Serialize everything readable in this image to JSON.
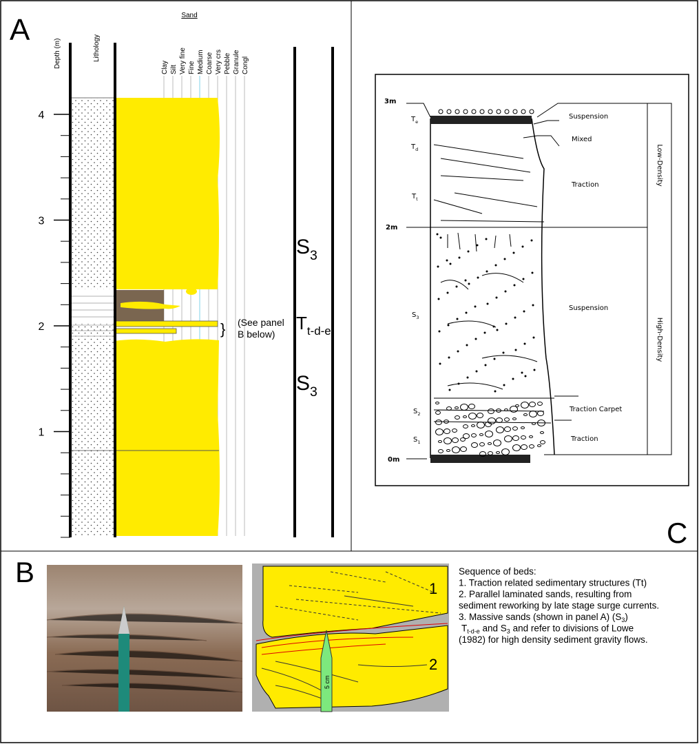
{
  "panel_labels": {
    "a": "A",
    "b": "B",
    "c": "C"
  },
  "panel_a": {
    "depth_header": "Depth (m)",
    "lithology_header": "Lithology",
    "sand_header": "Sand",
    "grain_sizes": [
      "Clay",
      "Silt",
      "Very fine",
      "Fine",
      "Medium",
      "Coarse",
      "Very crs",
      "Pebble",
      "Granule",
      "Congl"
    ],
    "depth_ticks": [
      1,
      2,
      3,
      4
    ],
    "units": [
      {
        "main": "S",
        "sub": "3"
      },
      {
        "main": "T",
        "sub": "t-d-e"
      },
      {
        "main": "S",
        "sub": "3"
      }
    ],
    "note": [
      "(See panel",
      "B below)"
    ]
  },
  "panel_c": {
    "depths": [
      "3m",
      "2m",
      "0m"
    ],
    "divisions": [
      {
        "main": "T",
        "sub": "e"
      },
      {
        "main": "T",
        "sub": "d"
      },
      {
        "main": "T",
        "sub": "t"
      },
      {
        "main": "S",
        "sub": "3"
      },
      {
        "main": "S",
        "sub": "2"
      },
      {
        "main": "S",
        "sub": "1"
      }
    ],
    "processes": [
      "Suspension",
      "Mixed",
      "Traction",
      "Suspension",
      "Traction Carpet",
      "Traction"
    ],
    "flow_types": [
      "Low-Density",
      "High-Density"
    ]
  },
  "panel_b": {
    "sketch_labels": [
      "1",
      "2"
    ],
    "scale": "5 cm",
    "caption": [
      [
        {
          "text": "Sequence of beds:"
        }
      ],
      [
        {
          "text": "1. Traction related sedimentary structures (Tt)"
        }
      ],
      [
        {
          "text": "2. Parallel laminated sands, resulting from"
        }
      ],
      [
        {
          "text": "sediment reworking by late stage surge currents."
        }
      ],
      [
        {
          "text": "3. Massive sands (shown in panel A) (S"
        },
        {
          "sub": "3"
        },
        {
          "text": ")"
        }
      ],
      [
        {
          "text": "T"
        },
        {
          "sub": "t-d-e"
        },
        {
          "text": " and S"
        },
        {
          "sub": "3"
        },
        {
          "text": " and refer to divisions of Lowe"
        }
      ],
      [
        {
          "text": "(1982) for high density sediment gravity flows."
        }
      ]
    ]
  }
}
